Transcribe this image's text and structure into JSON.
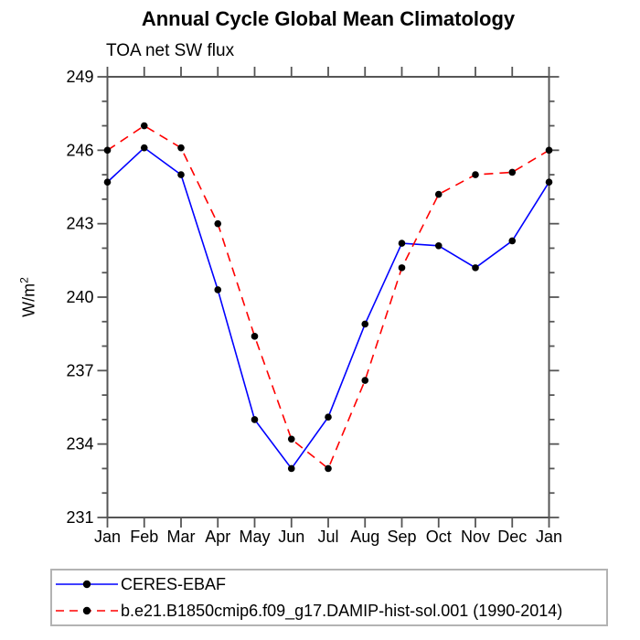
{
  "header": {
    "title": "Annual Cycle Global Mean Climatology",
    "subtitle": "TOA net SW flux"
  },
  "y_axis": {
    "label_base": "W/m",
    "label_sup": "2"
  },
  "colors": {
    "frame": "#555555",
    "text": "#000000",
    "legend_border": "#b3b3b3",
    "series_blue": "#0000ff",
    "series_red": "#ff0000",
    "marker_black": "#000000"
  },
  "chart_data": {
    "type": "line",
    "title": "Annual Cycle Global Mean Climatology",
    "subtitle": "TOA net SW flux",
    "xlabel": "",
    "ylabel": "W/m2",
    "categories": [
      "Jan",
      "Feb",
      "Mar",
      "Apr",
      "May",
      "Jun",
      "Jul",
      "Aug",
      "Sep",
      "Oct",
      "Nov",
      "Dec",
      "Jan"
    ],
    "ylim": [
      231,
      249
    ],
    "y_major_ticks": [
      231,
      234,
      237,
      240,
      243,
      246,
      249
    ],
    "y_major_tick_step": 3,
    "y_minor_tick_step": 1,
    "grid": false,
    "legend_position": "bottom-left",
    "series": [
      {
        "name": "CERES-EBAF",
        "color": "#0000ff",
        "line_style": "solid",
        "marker": "circle",
        "marker_color": "#000000",
        "values": [
          244.7,
          246.1,
          245.0,
          240.3,
          235.0,
          233.0,
          235.1,
          238.9,
          242.2,
          242.1,
          241.2,
          242.3,
          244.7
        ]
      },
      {
        "name": "b.e21.B1850cmip6.f09_g17.DAMIP-hist-sol.001 (1990-2014)",
        "color": "#ff0000",
        "line_style": "dashed",
        "marker": "circle",
        "marker_color": "#000000",
        "values": [
          246.0,
          247.0,
          246.1,
          243.0,
          238.4,
          234.2,
          233.0,
          236.6,
          241.2,
          244.2,
          245.0,
          245.1,
          246.0
        ]
      }
    ]
  }
}
